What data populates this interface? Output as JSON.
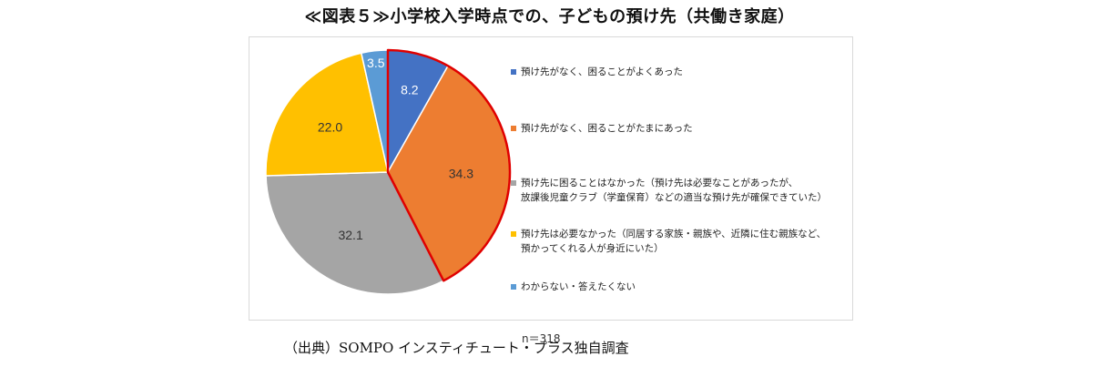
{
  "header": {
    "title": "≪図表５≫小学校入学時点での、子どもの預け先（共働き家庭）"
  },
  "footer": {
    "source": "（出典）SOMPO インスティチュート・プラス独自調査"
  },
  "chart_data": {
    "type": "pie",
    "title": "≪図表５≫小学校入学時点での、子どもの預け先（共働き家庭）",
    "sample_size": "n＝318",
    "highlight": [
      0,
      1
    ],
    "slices": [
      {
        "label": "預け先がなく、困ることがよくあった",
        "value": 8.2,
        "value_label": "8.2",
        "color": "#4472C4",
        "label_color": "#ffffff"
      },
      {
        "label": "預け先がなく、困ることがたまにあった",
        "value": 34.3,
        "value_label": "34.3",
        "color": "#ED7D31",
        "label_color": "#333333"
      },
      {
        "label": "預け先に困ることはなかった（預け先は必要なことがあったが、\n放課後児童クラブ（学童保育）などの適当な預け先が確保できていた）",
        "value": 32.1,
        "value_label": "32.1",
        "color": "#A5A5A5",
        "label_color": "#333333"
      },
      {
        "label": "預け先は必要なかった（同居する家族・親族や、近隣に住む親族など、\n預かってくれる人が身近にいた）",
        "value": 22.0,
        "value_label": "22.0",
        "color": "#FFC000",
        "label_color": "#333333"
      },
      {
        "label": "わからない・答えたくない",
        "value": 3.5,
        "value_label": "3.5",
        "color": "#5B9BD5",
        "label_color": "#ffffff"
      }
    ],
    "highlight_color": "#E00000"
  }
}
